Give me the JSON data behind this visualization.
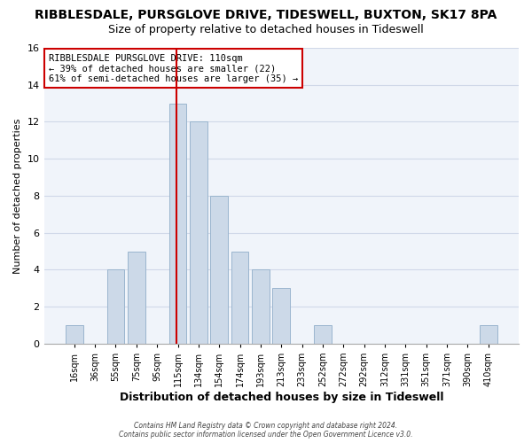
{
  "title": "RIBBLESDALE, PURSGLOVE DRIVE, TIDESWELL, BUXTON, SK17 8PA",
  "subtitle": "Size of property relative to detached houses in Tideswell",
  "xlabel": "Distribution of detached houses by size in Tideswell",
  "ylabel": "Number of detached properties",
  "bar_color": "#ccd9e8",
  "bar_edge_color": "#9ab5ce",
  "bin_labels": [
    "16sqm",
    "36sqm",
    "55sqm",
    "75sqm",
    "95sqm",
    "115sqm",
    "134sqm",
    "154sqm",
    "174sqm",
    "193sqm",
    "213sqm",
    "233sqm",
    "252sqm",
    "272sqm",
    "292sqm",
    "312sqm",
    "331sqm",
    "351sqm",
    "371sqm",
    "390sqm",
    "410sqm"
  ],
  "heights": [
    1,
    0,
    4,
    5,
    0,
    13,
    12,
    8,
    5,
    4,
    3,
    0,
    1,
    0,
    0,
    0,
    0,
    0,
    0,
    0,
    1
  ],
  "ylim": [
    0,
    16
  ],
  "yticks": [
    0,
    2,
    4,
    6,
    8,
    10,
    12,
    14,
    16
  ],
  "vline_color": "#cc0000",
  "vline_bin_index": 5,
  "annotation_text": "RIBBLESDALE PURSGLOVE DRIVE: 110sqm\n← 39% of detached houses are smaller (22)\n61% of semi-detached houses are larger (35) →",
  "annotation_box_edgecolor": "#cc0000",
  "footer_line1": "Contains HM Land Registry data © Crown copyright and database right 2024.",
  "footer_line2": "Contains public sector information licensed under the Open Government Licence v3.0.",
  "background_color": "#ffffff",
  "plot_bg_color": "#f0f4fa",
  "grid_color": "#d0d8e8",
  "title_fontsize": 10,
  "subtitle_fontsize": 9,
  "ylabel_fontsize": 8,
  "xlabel_fontsize": 9
}
